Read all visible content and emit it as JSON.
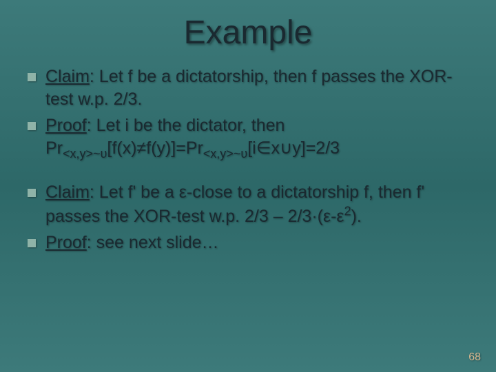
{
  "title": "Example",
  "items": [
    {
      "label_underline": "Claim",
      "rest": ": Let f be a dictatorship, then f passes the XOR-test w.p. 2/3."
    },
    {
      "label_underline": "Proof",
      "rest_html": ": Let i be the dictator, then Pr<sub>&lt;x,y&gt;~υ</sub>[f(x)≠f(y)]=Pr<sub>&lt;x,y&gt;~υ</sub>[i∈x∪y]=2/3"
    },
    {
      "label_underline": "Claim",
      "rest_html": ": Let f' be a ε-close to a dictatorship f, then f' passes the XOR-test w.p. 2/3 – 2/3·(ε-ε<sup>2</sup>)."
    },
    {
      "label_underline": "Proof",
      "rest": ": see next slide…"
    }
  ],
  "page_number": "68",
  "colors": {
    "bg_top": "#3d7a7a",
    "bg_mid": "#2d6868",
    "text": "#1a2930",
    "bullet": "#8fb3a8",
    "pagenum": "#d8b890"
  },
  "fontsize": {
    "title": 48,
    "body": 25,
    "pagenum": 16
  }
}
